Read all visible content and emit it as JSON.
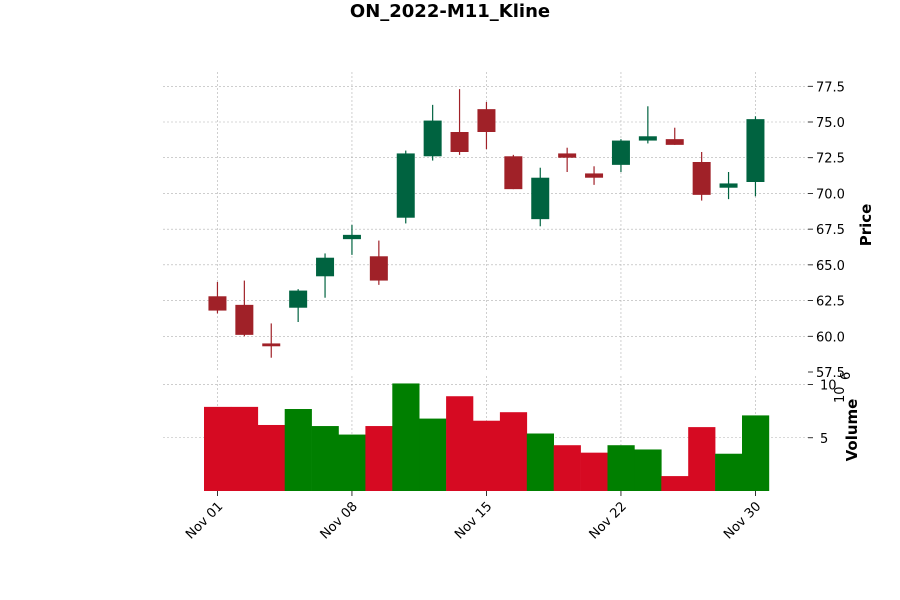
{
  "chart_data": {
    "type": "candlestick",
    "title": "ON_2022-M11_Kline",
    "price_axis": {
      "label": "Price",
      "ylim": [
        57.5,
        78.5
      ],
      "ticks": [
        "57.5",
        "60.0",
        "62.5",
        "65.0",
        "67.5",
        "70.0",
        "72.5",
        "75.0",
        "77.5"
      ],
      "tick_values": [
        57.5,
        60.0,
        62.5,
        65.0,
        67.5,
        70.0,
        72.5,
        75.0,
        77.5
      ],
      "position": "right",
      "grid": true
    },
    "volume_axis": {
      "label": "Volume",
      "exponent_label": "10",
      "exponent_power": "6",
      "ylim": [
        0,
        10.8
      ],
      "ticks": [
        "5",
        "10"
      ],
      "tick_values": [
        5,
        10
      ],
      "position": "right",
      "grid": true
    },
    "x_axis": {
      "tick_labels": [
        "Nov 01",
        "Nov 08",
        "Nov 15",
        "Nov 22",
        "Nov 30"
      ],
      "tick_indices": [
        0,
        5,
        10,
        15,
        20
      ]
    },
    "colors": {
      "up_candle": "#006340",
      "down_candle": "#a02128",
      "up_volume": "#007f00",
      "down_volume": "#d60a22"
    },
    "candles": [
      {
        "date": "2022-11-01",
        "open": 62.8,
        "high": 63.8,
        "low": 61.6,
        "close": 61.8,
        "volume": 7.9
      },
      {
        "date": "2022-11-02",
        "open": 62.2,
        "high": 63.9,
        "low": 60.0,
        "close": 60.1,
        "volume": 7.9
      },
      {
        "date": "2022-11-03",
        "open": 59.5,
        "high": 60.9,
        "low": 58.5,
        "close": 59.3,
        "volume": 6.2
      },
      {
        "date": "2022-11-04",
        "open": 62.0,
        "high": 63.3,
        "low": 61.0,
        "close": 63.2,
        "volume": 7.7
      },
      {
        "date": "2022-11-07",
        "open": 64.2,
        "high": 65.8,
        "low": 62.7,
        "close": 65.5,
        "volume": 6.1
      },
      {
        "date": "2022-11-08",
        "open": 66.8,
        "high": 67.8,
        "low": 65.7,
        "close": 67.1,
        "volume": 5.3
      },
      {
        "date": "2022-11-09",
        "open": 65.6,
        "high": 66.7,
        "low": 63.6,
        "close": 63.9,
        "volume": 6.1
      },
      {
        "date": "2022-11-10",
        "open": 68.3,
        "high": 73.0,
        "low": 67.9,
        "close": 72.8,
        "volume": 10.1
      },
      {
        "date": "2022-11-11",
        "open": 72.6,
        "high": 76.2,
        "low": 72.3,
        "close": 75.1,
        "volume": 6.8
      },
      {
        "date": "2022-11-14",
        "open": 74.3,
        "high": 77.3,
        "low": 72.7,
        "close": 72.9,
        "volume": 8.9
      },
      {
        "date": "2022-11-15",
        "open": 75.9,
        "high": 76.4,
        "low": 73.1,
        "close": 74.3,
        "volume": 6.6
      },
      {
        "date": "2022-11-16",
        "open": 72.6,
        "high": 72.7,
        "low": 70.3,
        "close": 70.3,
        "volume": 7.4
      },
      {
        "date": "2022-11-17",
        "open": 68.2,
        "high": 71.8,
        "low": 67.7,
        "close": 71.1,
        "volume": 5.4
      },
      {
        "date": "2022-11-18",
        "open": 72.8,
        "high": 73.2,
        "low": 71.5,
        "close": 72.5,
        "volume": 4.3
      },
      {
        "date": "2022-11-21",
        "open": 71.4,
        "high": 71.9,
        "low": 70.6,
        "close": 71.1,
        "volume": 3.6
      },
      {
        "date": "2022-11-22",
        "open": 72.0,
        "high": 73.8,
        "low": 71.5,
        "close": 73.7,
        "volume": 4.3
      },
      {
        "date": "2022-11-23",
        "open": 73.7,
        "high": 76.1,
        "low": 73.5,
        "close": 74.0,
        "volume": 3.9
      },
      {
        "date": "2022-11-25",
        "open": 73.8,
        "high": 74.6,
        "low": 73.4,
        "close": 73.4,
        "volume": 1.4
      },
      {
        "date": "2022-11-28",
        "open": 72.2,
        "high": 72.9,
        "low": 69.5,
        "close": 69.9,
        "volume": 6.0
      },
      {
        "date": "2022-11-29",
        "open": 70.4,
        "high": 71.5,
        "low": 69.6,
        "close": 70.7,
        "volume": 3.5
      },
      {
        "date": "2022-11-30",
        "open": 70.8,
        "high": 75.4,
        "low": 69.8,
        "close": 75.2,
        "volume": 7.1
      }
    ]
  }
}
